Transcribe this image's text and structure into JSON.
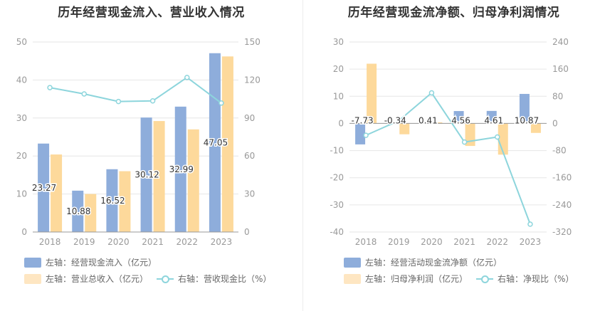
{
  "chart_data": [
    {
      "type": "bar",
      "title": "历年经营现金流入、营业收入情况",
      "categories": [
        "2018",
        "2019",
        "2020",
        "2021",
        "2022",
        "2023"
      ],
      "left_axis": {
        "ylim": [
          0,
          50
        ],
        "ticks": [
          "0",
          "10",
          "20",
          "30",
          "40",
          "50"
        ]
      },
      "right_axis": {
        "ylim": [
          0,
          150
        ],
        "ticks": [
          "0",
          "30",
          "60",
          "90",
          "120",
          "150"
        ]
      },
      "series": [
        {
          "name": "左轴：经营现金流入（亿元）",
          "kind": "bar",
          "axis": "left",
          "color": "#8eaddb",
          "values": [
            23.27,
            10.88,
            16.52,
            30.12,
            32.99,
            47.05
          ],
          "labels": [
            "23.27",
            "10.88",
            "16.52",
            "30.12",
            "32.99",
            "47.05"
          ]
        },
        {
          "name": "左轴：营业总收入（亿元）",
          "kind": "bar",
          "axis": "left",
          "color": "#fdd99b",
          "values": [
            20.4,
            10.0,
            16.0,
            29.2,
            27.0,
            46.2
          ]
        },
        {
          "name": "右轴：营收现金比（%）",
          "kind": "line",
          "axis": "right",
          "color": "#8dd5dc",
          "values": [
            114,
            109,
            103,
            103.5,
            122,
            101.8
          ]
        }
      ],
      "grid": true
    },
    {
      "type": "bar",
      "title": "历年经营现金流净额、归母净利润情况",
      "categories": [
        "2018",
        "2019",
        "2020",
        "2021",
        "2022",
        "2023"
      ],
      "left_axis": {
        "ylim": [
          -40,
          30
        ],
        "ticks": [
          "-40",
          "-30",
          "-20",
          "-10",
          "0",
          "10",
          "20",
          "30"
        ]
      },
      "right_axis": {
        "ylim": [
          -320,
          240
        ],
        "ticks": [
          "-320",
          "-240",
          "-160",
          "-80",
          "0",
          "80",
          "160",
          "240"
        ]
      },
      "series": [
        {
          "name": "左轴：经营活动现金流净额（亿元）",
          "kind": "bar",
          "axis": "left",
          "color": "#8eaddb",
          "values": [
            -7.73,
            -0.34,
            0.41,
            4.56,
            4.61,
            10.87
          ],
          "labels": [
            "-7.73",
            "-0.34",
            "0.41",
            "4.56",
            "4.61",
            "10.87"
          ]
        },
        {
          "name": "左轴：归母净利润（亿元）",
          "kind": "bar",
          "axis": "left",
          "color": "#fdd99b",
          "values": [
            22.0,
            -4.0,
            0.4,
            -8.3,
            -11.5,
            -3.5
          ]
        },
        {
          "name": "右轴：净现比（%）",
          "kind": "line",
          "axis": "right",
          "color": "#8dd5dc",
          "values": [
            -35,
            8,
            90,
            -55,
            -40,
            -297
          ]
        }
      ],
      "grid": true
    }
  ]
}
